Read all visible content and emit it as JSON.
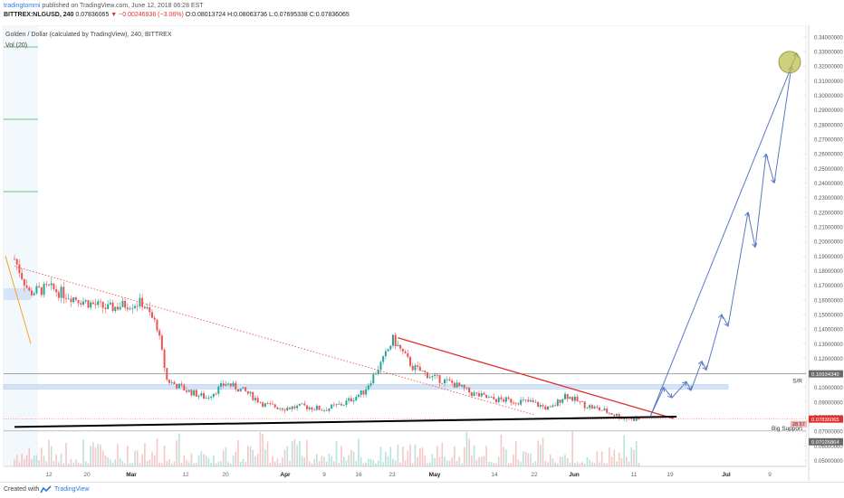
{
  "header": {
    "author": "tradingtommi",
    "published": "published on TradingView.com, June 12, 2018 06:28 EST",
    "symbol": "BITTREX:NLGUSD, 240",
    "last": "0.07836065",
    "change": "▼ −0.00246936 (−3.06%)",
    "ohlc": "O:0.08013724 H:0.08063736 L:0.07695338 C:0.07836065"
  },
  "footer": {
    "created_with": "Created with",
    "brand": "TradingView",
    "logo_icon": "tradingview-logo-icon"
  },
  "colors": {
    "candle_up": "#26a69a",
    "candle_down": "#ef5350",
    "resistance_line": "#e0312c",
    "support_line": "#000000",
    "projection": "#5a79c4",
    "zone": "#c9dcf5",
    "target_circle": "#bfbf50"
  },
  "chart_data": {
    "type": "candlestick",
    "title": "Golden / Dollar (calculated by TradingView), 240, BITTREX",
    "volume_label": "Vol (20)",
    "x_ticks": [
      "12",
      "20",
      "Mar",
      "12",
      "20",
      "Apr",
      "9",
      "16",
      "23",
      "May",
      "14",
      "22",
      "Jun",
      "11",
      "19",
      "Jul",
      "9"
    ],
    "y_ticks": [
      "0.34000000",
      "0.33000000",
      "0.32000000",
      "0.31000000",
      "0.30000000",
      "0.29000000",
      "0.28000000",
      "0.27000000",
      "0.26000000",
      "0.25000000",
      "0.24000000",
      "0.23000000",
      "0.22000000",
      "0.21000000",
      "0.20000000",
      "0.19000000",
      "0.18000000",
      "0.17000000",
      "0.16000000",
      "0.15000000",
      "0.14000000",
      "0.13000000",
      "0.12000000",
      "0.11000000",
      "0.10000000",
      "0.09000000",
      "0.08000000",
      "0.07000000",
      "0.06000000",
      "0.05000000"
    ],
    "ylim": [
      0.046,
      0.348
    ],
    "x_range": [
      "Feb 5",
      "Jul 15"
    ],
    "price_path": [
      {
        "x": "Feb 5",
        "y": 0.188
      },
      {
        "x": "Feb 8",
        "y": 0.165
      },
      {
        "x": "Feb 12",
        "y": 0.168
      },
      {
        "x": "Feb 16",
        "y": 0.163
      },
      {
        "x": "Feb 20",
        "y": 0.158
      },
      {
        "x": "Feb 24",
        "y": 0.154
      },
      {
        "x": "Feb 28",
        "y": 0.157
      },
      {
        "x": "Mar 3",
        "y": 0.158
      },
      {
        "x": "Mar 6",
        "y": 0.142
      },
      {
        "x": "Mar 8",
        "y": 0.105
      },
      {
        "x": "Mar 12",
        "y": 0.098
      },
      {
        "x": "Mar 16",
        "y": 0.093
      },
      {
        "x": "Mar 20",
        "y": 0.103
      },
      {
        "x": "Mar 24",
        "y": 0.097
      },
      {
        "x": "Mar 28",
        "y": 0.088
      },
      {
        "x": "Apr 1",
        "y": 0.086
      },
      {
        "x": "Apr 5",
        "y": 0.087
      },
      {
        "x": "Apr 9",
        "y": 0.085
      },
      {
        "x": "Apr 13",
        "y": 0.089
      },
      {
        "x": "Apr 17",
        "y": 0.097
      },
      {
        "x": "Apr 21",
        "y": 0.119
      },
      {
        "x": "Apr 23",
        "y": 0.133
      },
      {
        "x": "Apr 27",
        "y": 0.114
      },
      {
        "x": "May 1",
        "y": 0.107
      },
      {
        "x": "May 5",
        "y": 0.103
      },
      {
        "x": "May 9",
        "y": 0.096
      },
      {
        "x": "May 13",
        "y": 0.092
      },
      {
        "x": "May 17",
        "y": 0.091
      },
      {
        "x": "May 21",
        "y": 0.09
      },
      {
        "x": "May 25",
        "y": 0.085
      },
      {
        "x": "May 28",
        "y": 0.095
      },
      {
        "x": "Jun 1",
        "y": 0.088
      },
      {
        "x": "Jun 5",
        "y": 0.084
      },
      {
        "x": "Jun 9",
        "y": 0.079
      },
      {
        "x": "Jun 12",
        "y": 0.0784
      }
    ],
    "price_labels": [
      {
        "text": "S/R",
        "value": "0.10934340"
      },
      {
        "text": "",
        "value": "0.07836065"
      },
      {
        "text": "Big Support",
        "value": "0.07026864"
      }
    ],
    "volume_readout": "28.57",
    "sr_level": 0.1093434,
    "last_price": 0.07836065,
    "support_level": 0.07026864,
    "sr_zone": [
      0.099,
      0.102
    ],
    "drawings": {
      "resistance_line": [
        {
          "x": "Apr 24",
          "y": 0.134
        },
        {
          "x": "Jun 15",
          "y": 0.08
        }
      ],
      "support_line": [
        {
          "x": "Feb 5",
          "y": 0.073
        },
        {
          "x": "Jun 16",
          "y": 0.08
        }
      ],
      "dotted_trend": [
        {
          "x": "Feb 5",
          "y": 0.183
        },
        {
          "x": "May 22",
          "y": 0.081
        }
      ],
      "projection_path": [
        {
          "x": "Jun 14",
          "y": 0.08
        },
        {
          "x": "Jun 17",
          "y": 0.1
        },
        {
          "x": "Jun 21",
          "y": 0.093
        },
        {
          "x": "Jun 25",
          "y": 0.104
        },
        {
          "x": "Jun 30",
          "y": 0.098
        },
        {
          "x": "Jul 3",
          "y": 0.118
        },
        {
          "x": "Jul 6",
          "y": 0.112
        },
        {
          "x": "Jul 10",
          "y": 0.15
        },
        {
          "x": "Jul 13",
          "y": 0.142
        },
        {
          "x": "Jul 17",
          "y": 0.22
        },
        {
          "x": "Jul 20",
          "y": 0.196
        },
        {
          "x": "Jul 23",
          "y": 0.26
        },
        {
          "x": "Jul 26",
          "y": 0.24
        },
        {
          "x": "Jul 30",
          "y": 0.32
        }
      ],
      "projection_long": [
        {
          "x": "Jun 14",
          "y": 0.08
        },
        {
          "x": "Jul 31",
          "y": 0.329
        }
      ],
      "target": {
        "x": "Jul 29",
        "y": 0.324
      }
    }
  }
}
